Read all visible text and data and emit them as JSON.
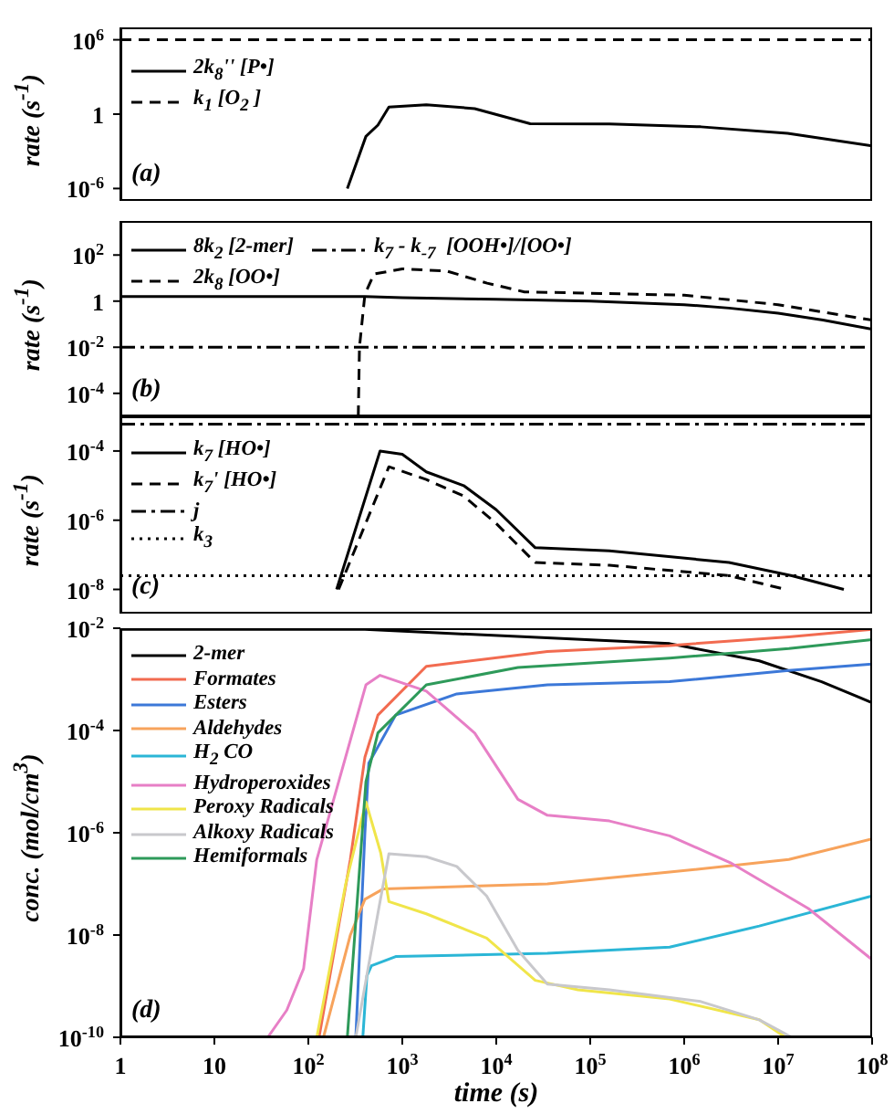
{
  "chart_data": [
    {
      "type": "line",
      "log": "xy",
      "ylabel": "rate (s$^{-1}$)",
      "annotations": [
        "(a)"
      ],
      "legend": "top left",
      "tick_labels": "y",
      "xlim": [
        1,
        100000000
      ],
      "ylim": [
        1e-07,
        10000000
      ],
      "xticks": [
        {
          "value": 1,
          "label": null
        },
        {
          "value": 10,
          "label": null
        },
        {
          "value": 100,
          "label": null
        },
        {
          "value": 1000,
          "label": null
        },
        {
          "value": 10000,
          "label": null
        },
        {
          "value": 100000,
          "label": null
        },
        {
          "value": 1000000,
          "label": null
        },
        {
          "value": 10000000,
          "label": null
        },
        {
          "value": 100000000,
          "label": null
        }
      ],
      "yticks": [
        {
          "value": 1000000,
          "label": "10$^{6}$"
        },
        1,
        {
          "value": 1e-06,
          "label": "10$^{-6}$"
        }
      ],
      "series": [
        {
          "name": "2k$_{8}$'' [P•]",
          "color": "#000000",
          "line_style": "solid",
          "x": [
            260,
            410,
            550,
            720,
            1800,
            5900,
            23000,
            160000,
            1500000,
            12600000,
            100000000
          ],
          "values": [
            1e-06,
            0.016,
            0.13,
            3.7,
            5.8,
            2.8,
            0.17,
            0.16,
            0.095,
            0.028,
            0.0027
          ]
        },
        {
          "name": "k$_{1}$ [O$_{2}$ ]",
          "color": "#000000",
          "line_style": "dashed",
          "x": [
            1,
            100000000
          ],
          "values": [
            1000000,
            1000000
          ]
        }
      ]
    },
    {
      "type": "line",
      "log": "xy",
      "ylabel": "rate (s$^{-1}$)",
      "annotations": [
        "(b)"
      ],
      "legend": "top left",
      "tick_labels": "y",
      "xlim": [
        1,
        100000000
      ],
      "ylim": [
        1e-05,
        3000
      ],
      "xticks": [
        {
          "value": 1,
          "label": null
        },
        {
          "value": 10,
          "label": null
        },
        {
          "value": 100,
          "label": null
        },
        {
          "value": 1000,
          "label": null
        },
        {
          "value": 10000,
          "label": null
        },
        {
          "value": 100000,
          "label": null
        },
        {
          "value": 1000000,
          "label": null
        },
        {
          "value": 10000000,
          "label": null
        },
        {
          "value": 100000000,
          "label": null
        }
      ],
      "yticks": [
        {
          "value": 100,
          "label": "10$^{2}$"
        },
        1,
        {
          "value": 0.01,
          "label": "10$^{-2}$"
        },
        {
          "value": 0.0001,
          "label": "10$^{-4}$"
        }
      ],
      "series": [
        {
          "name": "8k$_{2}$ [2-mer]",
          "color": "#000000",
          "line_style": "solid",
          "x": [
            1,
            400,
            1000,
            10000,
            100000,
            1000000,
            3000000,
            10000000,
            30000000,
            100000000
          ],
          "values": [
            1.6,
            1.6,
            1.4,
            1.2,
            1.0,
            0.7,
            0.5,
            0.3,
            0.15,
            0.06
          ]
        },
        {
          "name": "2k$_{8}$ [OO•]",
          "color": "#000000",
          "line_style": "dashed",
          "x": [
            340,
            350,
            400,
            500,
            1000,
            3000,
            8000,
            20000,
            100000,
            1000000,
            10000000,
            100000000
          ],
          "values": [
            1e-05,
            0.01,
            2,
            15,
            25,
            20,
            6,
            2.5,
            2.2,
            1.8,
            0.7,
            0.15
          ]
        },
        {
          "name": "k$_{7}$ - k$_{-7}$  [OOH•]/[OO•]",
          "color": "#000000",
          "line_style": "dashdot",
          "x": [
            1,
            100000000
          ],
          "values": [
            0.01,
            0.01
          ]
        }
      ]
    },
    {
      "type": "line",
      "log": "xy",
      "ylabel": "rate (s$^{-1}$)",
      "annotations": [
        "(c)"
      ],
      "legend": "top left",
      "tick_labels": "y",
      "xlim": [
        1,
        100000000
      ],
      "ylim": [
        2e-09,
        0.001
      ],
      "xticks": [
        {
          "value": 1,
          "label": null
        },
        {
          "value": 10,
          "label": null
        },
        {
          "value": 100,
          "label": null
        },
        {
          "value": 1000,
          "label": null
        },
        {
          "value": 10000,
          "label": null
        },
        {
          "value": 100000,
          "label": null
        },
        {
          "value": 1000000,
          "label": null
        },
        {
          "value": 10000000,
          "label": null
        },
        {
          "value": 100000000,
          "label": null
        }
      ],
      "yticks": [
        {
          "value": 0.0001,
          "label": "10$^{-4}$"
        },
        {
          "value": 1e-06,
          "label": "10$^{-6}$"
        },
        {
          "value": 1e-08,
          "label": "10$^{-8}$"
        }
      ],
      "series": [
        {
          "name": "k$_{7}$ [HO•]",
          "color": "#000000",
          "line_style": "solid",
          "x": [
            200,
            580,
            1000,
            1800,
            4500,
            10000,
            26000,
            160000,
            3000000,
            14000000,
            50000000
          ],
          "values": [
            1e-08,
            0.0001,
            8e-05,
            2.5e-05,
            1e-05,
            2e-06,
            1.6e-07,
            1.3e-07,
            6e-08,
            2.5e-08,
            1e-08
          ]
        },
        {
          "name": "k$_{7}$' [HO•]",
          "color": "#000000",
          "line_style": "dashed",
          "x": [
            210,
            720,
            1800,
            4500,
            10000,
            26000,
            160000,
            3000000,
            12000000
          ],
          "values": [
            1e-08,
            3.5e-05,
            1.5e-05,
            5e-06,
            8e-07,
            6e-08,
            5e-08,
            2.5e-08,
            1e-08
          ]
        },
        {
          "name": "j",
          "color": "#000000",
          "line_style": "dashdot",
          "x": [
            1,
            100000000
          ],
          "values": [
            0.0006,
            0.0006
          ]
        },
        {
          "name": "k$_{3}$",
          "color": "#000000",
          "line_style": "dotted",
          "x": [
            1,
            100000000
          ],
          "values": [
            2.5e-08,
            2.5e-08
          ]
        }
      ]
    },
    {
      "type": "line",
      "log": "xy",
      "ylabel": "conc. (mol/cm$^{3}$)",
      "xlabel": "time (s)",
      "annotations": [
        "(d)"
      ],
      "legend": "top left",
      "xlim": [
        1,
        100000000
      ],
      "ylim": [
        1e-10,
        0.01
      ],
      "xticks": [
        1,
        10,
        {
          "value": 100,
          "label": "10$^{2}$"
        },
        {
          "value": 1000,
          "label": "10$^{3}$"
        },
        {
          "value": 10000,
          "label": "10$^{4}$"
        },
        {
          "value": 100000,
          "label": "10$^{5}$"
        },
        {
          "value": 1000000,
          "label": "10$^{6}$"
        },
        {
          "value": 10000000,
          "label": "10$^{7}$"
        },
        {
          "value": 100000000,
          "label": "10$^{8}$"
        }
      ],
      "yticks": [
        {
          "value": 0.01,
          "label": "10$^{-2}$"
        },
        {
          "value": 0.0001,
          "label": "10$^{-4}$"
        },
        {
          "value": 1e-06,
          "label": "10$^{-6}$"
        },
        {
          "value": 1e-08,
          "label": "10$^{-8}$"
        },
        {
          "value": 1e-10,
          "label": "10$^{-10}$"
        }
      ],
      "series": [
        {
          "name": "2-mer",
          "color": "#000000",
          "line_style": "solid",
          "x": [
            1,
            400,
            700000,
            6300000,
            29000000,
            100000000
          ],
          "values": [
            0.0095,
            0.0095,
            0.005,
            0.0023,
            0.0009,
            0.00035
          ]
        },
        {
          "name": "Formates",
          "color": "#f26b50",
          "line_style": "solid",
          "x": [
            130,
            280,
            400,
            550,
            1800,
            35000,
            700000,
            13000000,
            100000000
          ],
          "values": [
            1e-10,
            3e-07,
            3e-05,
            0.0002,
            0.0018,
            0.0035,
            0.0046,
            0.0068,
            0.0095
          ]
        },
        {
          "name": "Esters",
          "color": "#3c78d8",
          "line_style": "solid",
          "x": [
            320,
            400,
            440,
            850,
            3800,
            35000,
            700000,
            13000000,
            100000000
          ],
          "values": [
            1e-10,
            1e-06,
            2.3e-05,
            0.0002,
            0.00052,
            0.00078,
            0.0009,
            0.0015,
            0.002
          ]
        },
        {
          "name": "Aldehydes",
          "color": "#f7a35c",
          "line_style": "solid",
          "x": [
            145,
            280,
            400,
            630,
            35000,
            700000,
            13000000,
            100000000
          ],
          "values": [
            1e-10,
            1e-08,
            5e-08,
            8e-08,
            1e-07,
            1.7e-07,
            3e-07,
            7.6e-07
          ]
        },
        {
          "name": "H$_{2}$ CO",
          "color": "#2bb6d6",
          "line_style": "solid",
          "x": [
            380,
            420,
            470,
            850,
            35000,
            700000,
            6300000,
            100000000
          ],
          "values": [
            1e-10,
            1.6e-09,
            2.5e-09,
            3.8e-09,
            4.4e-09,
            5.8e-09,
            1.5e-08,
            5.8e-08
          ]
        },
        {
          "name": "Hydroperoxides",
          "color": "#e77fc6",
          "line_style": "solid",
          "x": [
            37,
            59,
            89,
            123,
            410,
            580,
            1800,
            5900,
            17000,
            35000,
            160000,
            700000,
            3100000,
            21000000,
            100000000
          ],
          "values": [
            1e-10,
            3.4e-10,
            2.2e-09,
            3e-07,
            0.00078,
            0.0012,
            0.00059,
            8.9e-05,
            4.5e-06,
            2.2e-06,
            1.7e-06,
            8.7e-07,
            2.6e-07,
            3.3e-08,
            3.3e-09
          ]
        },
        {
          "name": "Peroxy Radicals",
          "color": "#f0e54a",
          "line_style": "solid",
          "x": [
            123,
            250,
            410,
            590,
            720,
            1800,
            7900,
            26000,
            74000,
            700000,
            6300000,
            12000000
          ],
          "values": [
            1e-10,
            1e-07,
            4e-06,
            4e-07,
            4.5e-08,
            2.6e-08,
            8.7e-09,
            1.3e-09,
            8.5e-10,
            5.6e-10,
            2.2e-10,
            1e-10
          ]
        },
        {
          "name": "Alkoxy Radicals",
          "color": "#c8c8cc",
          "line_style": "solid",
          "x": [
            320,
            560,
            720,
            1800,
            3800,
            7900,
            17000,
            35000,
            160000,
            1500000,
            6300000,
            14000000
          ],
          "values": [
            1e-10,
            3.2e-08,
            3.9e-07,
            3.4e-07,
            2.2e-07,
            5.8e-08,
            5e-09,
            1.1e-09,
            8.5e-10,
            5e-10,
            2.2e-10,
            1e-10
          ]
        },
        {
          "name": "Hemiformals",
          "color": "#2e9a5a",
          "line_style": "solid",
          "x": [
            260,
            410,
            550,
            1800,
            17000,
            700000,
            13000000,
            100000000
          ],
          "values": [
            1e-10,
            1e-05,
            9e-05,
            0.00078,
            0.0017,
            0.0026,
            0.004,
            0.006
          ]
        }
      ]
    }
  ]
}
